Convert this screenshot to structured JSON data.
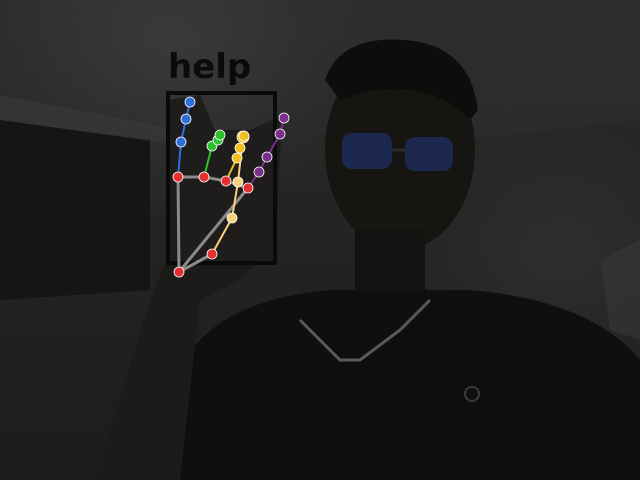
{
  "detection": {
    "label": "help"
  },
  "landmark_colors": {
    "joint": "#e53030",
    "palm": "#8a8a8a",
    "thumb": "#f7d27a",
    "index": "#7a2f8c",
    "middle": "#f0c020",
    "ring": "#2fc02f",
    "pinky": "#2d6fd8"
  }
}
